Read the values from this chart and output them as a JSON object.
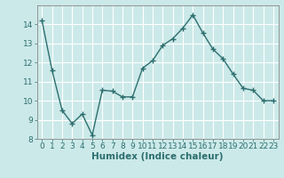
{
  "x": [
    0,
    1,
    2,
    3,
    4,
    5,
    6,
    7,
    8,
    9,
    10,
    11,
    12,
    13,
    14,
    15,
    16,
    17,
    18,
    19,
    20,
    21,
    22,
    23
  ],
  "y": [
    14.2,
    11.6,
    9.5,
    8.8,
    9.3,
    8.2,
    10.55,
    10.5,
    10.2,
    10.2,
    11.7,
    12.1,
    12.9,
    13.25,
    13.8,
    14.5,
    13.55,
    12.7,
    12.2,
    11.4,
    10.65,
    10.55,
    10.0,
    10.0
  ],
  "line_color": "#2d6e6e",
  "marker": "+",
  "marker_size": 4,
  "xlabel": "Humidex (Indice chaleur)",
  "xlim": [
    -0.5,
    23.5
  ],
  "ylim": [
    8,
    15
  ],
  "yticks": [
    8,
    9,
    10,
    11,
    12,
    13,
    14
  ],
  "xticks": [
    0,
    1,
    2,
    3,
    4,
    5,
    6,
    7,
    8,
    9,
    10,
    11,
    12,
    13,
    14,
    15,
    16,
    17,
    18,
    19,
    20,
    21,
    22,
    23
  ],
  "bg_color": "#cce9e9",
  "grid_color": "#ffffff",
  "tick_label_fontsize": 6.5,
  "xlabel_fontsize": 7.5,
  "line_width": 1.0
}
